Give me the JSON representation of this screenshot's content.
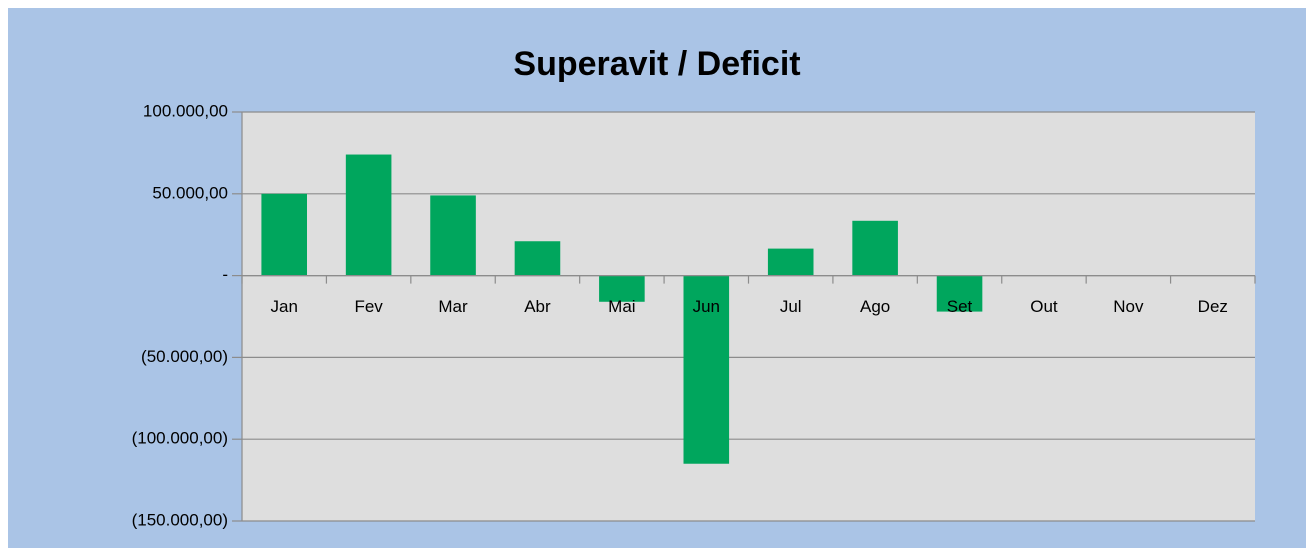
{
  "chart_data": {
    "type": "bar",
    "title": "Superavit / Deficit",
    "categories": [
      "Jan",
      "Fev",
      "Mar",
      "Abr",
      "Mai",
      "Jun",
      "Jul",
      "Ago",
      "Set",
      "Out",
      "Nov",
      "Dez"
    ],
    "values": [
      50000,
      74000,
      49000,
      21000,
      -16000,
      -115000,
      16500,
      33500,
      -22000,
      null,
      null,
      null
    ],
    "color": "#00a65d",
    "ylim": [
      -150000,
      100000
    ],
    "yticks": [
      {
        "value": 100000,
        "label": "100.000,00"
      },
      {
        "value": 50000,
        "label": "50.000,00"
      },
      {
        "value": 0,
        "label": "-"
      },
      {
        "value": -50000,
        "label": "(50.000,00)"
      },
      {
        "value": -100000,
        "label": "(100.000,00)"
      },
      {
        "value": -150000,
        "label": "(150.000,00)"
      }
    ],
    "grid": true
  }
}
